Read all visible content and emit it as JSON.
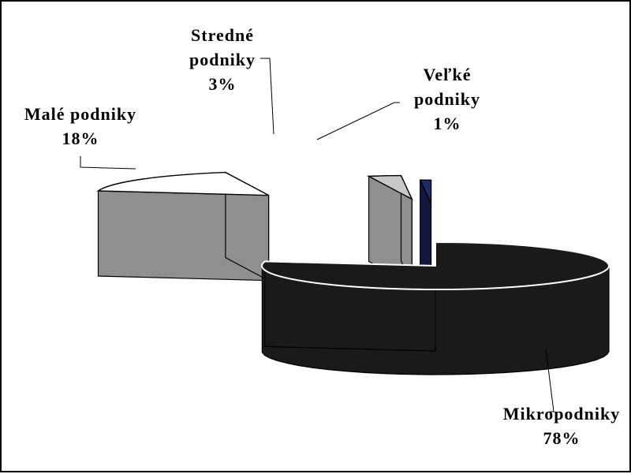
{
  "chart_data": {
    "type": "pie",
    "title": "",
    "categories": [
      "Mikropodniky",
      "Malé podniky",
      "Stredné podniky",
      "Veľké podniky"
    ],
    "values": [
      78,
      18,
      3,
      1
    ],
    "value_labels": [
      "78%",
      "18%",
      "3%",
      "1%"
    ],
    "label_lines": [
      [
        "Mikropodniky",
        "78%"
      ],
      [
        "Malé podniky",
        "18%"
      ],
      [
        "Stredné",
        "podniky",
        "3%"
      ],
      [
        "Veľké",
        "podniky",
        "1%"
      ]
    ],
    "colors": [
      "#1a1a1a",
      "#ffffff",
      "#c8c8c8",
      "#1f2a6b"
    ],
    "side_colors": [
      "#1a1a1a",
      "#8f8f8f",
      "#8f8f8f",
      "#101840"
    ],
    "style": "3d-exploded",
    "legend": "none"
  }
}
